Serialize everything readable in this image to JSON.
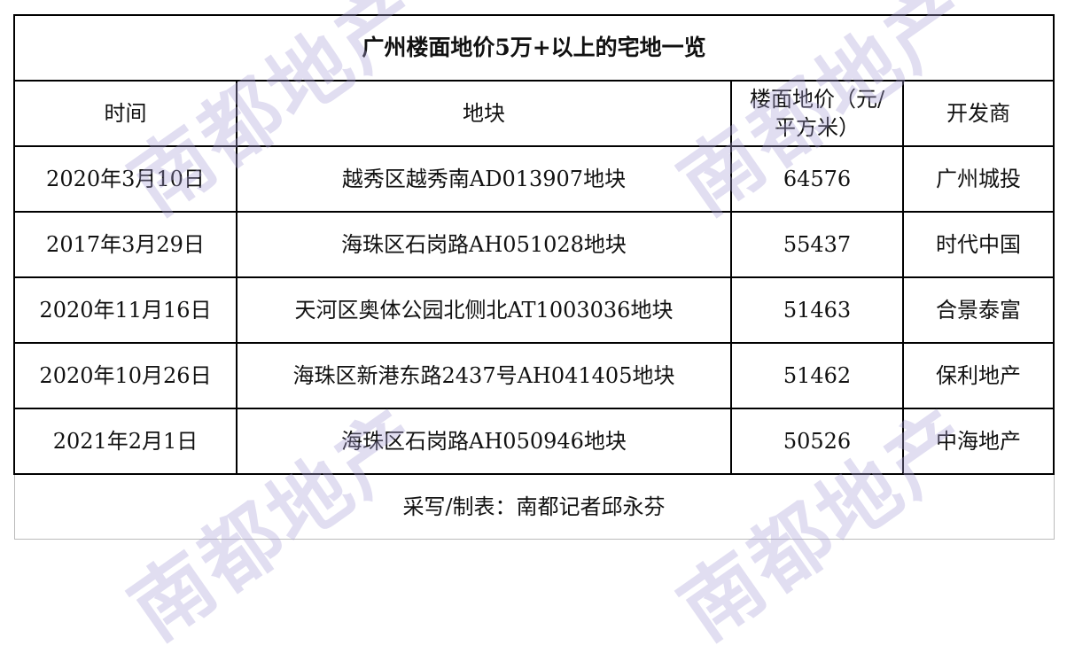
{
  "title": "广州楼面地价5万+以上的宅地一览",
  "columns": [
    "时间",
    "地块",
    "楼面地价（元/平方米）",
    "开发商"
  ],
  "rows": [
    [
      "2020年3月10日",
      "越秀区越秀南AD013907地块",
      "64576",
      "广州城投"
    ],
    [
      "2017年3月29日",
      "海珠区石岗路AH051028地块",
      "55437",
      "时代中国"
    ],
    [
      "2020年11月16日",
      "天河区奥体公园北侧北AT1003036地块",
      "51463",
      "合景泰富"
    ],
    [
      "2020年10月26日",
      "海珠区新港东路2437号AH041405地块",
      "51462",
      "保利地产"
    ],
    [
      "2021年2月1日",
      "海珠区石岗路AH050946地块",
      "50526",
      "中海地产"
    ]
  ],
  "footer": "采写/制表：南都记者邱永芬",
  "watermark": "南都地产"
}
